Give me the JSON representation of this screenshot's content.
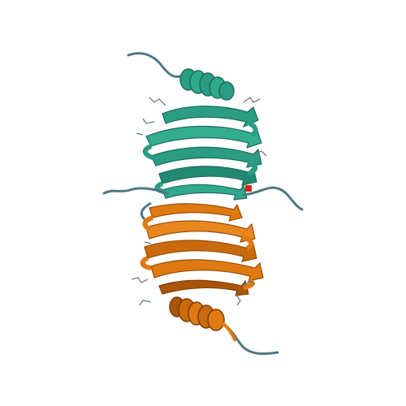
{
  "image": {
    "subject": "protein-cartoon-dimer",
    "background_color": "#ffffff"
  },
  "chains": [
    {
      "id": "A",
      "color": "#2a9d84",
      "shade": "#1f7a66",
      "elements": [
        "helix",
        "beta-sheet",
        "loops"
      ]
    },
    {
      "id": "B",
      "color": "#e07a10",
      "shade": "#a9560a",
      "elements": [
        "helix",
        "beta-sheet",
        "loops"
      ]
    }
  ],
  "ligand_color": "#cc2a1a",
  "stick_color": "#6b7a8a"
}
